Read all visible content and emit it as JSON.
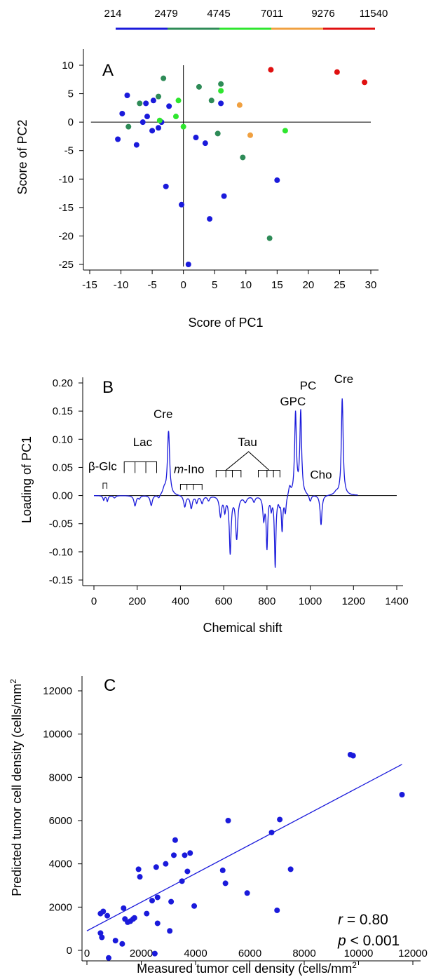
{
  "color_bar": {
    "labels": [
      "214",
      "2479",
      "4745",
      "7011",
      "9276",
      "11540"
    ],
    "colors": [
      "#1a1adb",
      "#2e8b57",
      "#2ee62e",
      "#f0a040",
      "#e01010"
    ]
  },
  "chart_data": [
    {
      "type": "scatter",
      "panel_label": "A",
      "xlabel": "Score of PC1",
      "ylabel": "Score of PC2",
      "xlim": [
        -15,
        30
      ],
      "ylim": [
        -25,
        10
      ],
      "xticks": [
        -15,
        -10,
        -5,
        0,
        5,
        10,
        15,
        20,
        25,
        30
      ],
      "yticks": [
        10,
        5,
        0,
        -5,
        -10,
        -15,
        -20,
        -25
      ],
      "reference_lines": [
        "x=0",
        "y=0"
      ],
      "color_scale": "cell density bins (see color_bar)",
      "series": [
        {
          "color": "#1a1adb",
          "points": [
            [
              -10.5,
              -3
            ],
            [
              -9.8,
              1.5
            ],
            [
              -9,
              4.7
            ],
            [
              -7.5,
              -4
            ],
            [
              -6.5,
              0
            ],
            [
              -6,
              3.3
            ],
            [
              -5.8,
              1
            ],
            [
              -5,
              -1.5
            ],
            [
              -4.8,
              3.8
            ],
            [
              -4,
              -1
            ],
            [
              -3.5,
              0
            ],
            [
              -2.8,
              -11.3
            ],
            [
              -2.3,
              2.8
            ],
            [
              -0.3,
              -14.5
            ],
            [
              0.8,
              -25
            ],
            [
              2,
              -2.7
            ],
            [
              3.5,
              -3.7
            ],
            [
              4.2,
              -17
            ],
            [
              6,
              3.3
            ],
            [
              6.5,
              -13
            ],
            [
              15,
              -10.2
            ]
          ]
        },
        {
          "color": "#2e8b57",
          "points": [
            [
              -8.8,
              -0.8
            ],
            [
              -7,
              3.3
            ],
            [
              -4,
              4.5
            ],
            [
              -3.2,
              7.7
            ],
            [
              2.5,
              6.2
            ],
            [
              4.5,
              3.8
            ],
            [
              5.5,
              -2
            ],
            [
              6,
              6.7
            ],
            [
              9.5,
              -6.2
            ],
            [
              13.8,
              -20.4
            ]
          ]
        },
        {
          "color": "#2ee62e",
          "points": [
            [
              -3.8,
              0.3
            ],
            [
              -0.8,
              3.8
            ],
            [
              -1.2,
              1
            ],
            [
              0,
              -0.8
            ],
            [
              6,
              5.5
            ],
            [
              16.3,
              -1.5
            ]
          ]
        },
        {
          "color": "#f0a040",
          "points": [
            [
              9,
              3
            ],
            [
              10.7,
              -2.3
            ]
          ]
        },
        {
          "color": "#e01010",
          "points": [
            [
              14,
              9.2
            ],
            [
              24.6,
              8.8
            ],
            [
              29,
              7
            ]
          ]
        }
      ]
    },
    {
      "type": "line",
      "panel_label": "B",
      "xlabel": "Chemical shift",
      "ylabel": "Loading of PC1",
      "xlim": [
        0,
        1400
      ],
      "ylim": [
        -0.15,
        0.2
      ],
      "xticks": [
        0,
        200,
        400,
        600,
        800,
        1000,
        1200,
        1400
      ],
      "yticks": [
        "0.20",
        "0.15",
        "0.10",
        "0.05",
        "0.00",
        "-0.05",
        "-0.10",
        "-0.15"
      ],
      "series": [
        {
          "color": "#1a1adb",
          "peaks": [
            {
              "x": 45,
              "y": -0.008,
              "w": 4
            },
            {
              "x": 62,
              "y": -0.01,
              "w": 4
            },
            {
              "x": 95,
              "y": -0.004,
              "w": 6
            },
            {
              "x": 190,
              "y": -0.018,
              "w": 6
            },
            {
              "x": 210,
              "y": -0.005,
              "w": 5
            },
            {
              "x": 265,
              "y": -0.018,
              "w": 6
            },
            {
              "x": 300,
              "y": -0.006,
              "w": 6
            },
            {
              "x": 345,
              "y": 0.114,
              "w": 6
            },
            {
              "x": 325,
              "y": 0.01,
              "w": 8
            },
            {
              "x": 420,
              "y": -0.02,
              "w": 6
            },
            {
              "x": 450,
              "y": -0.022,
              "w": 6
            },
            {
              "x": 475,
              "y": -0.012,
              "w": 5
            },
            {
              "x": 500,
              "y": -0.013,
              "w": 6
            },
            {
              "x": 530,
              "y": -0.008,
              "w": 6
            },
            {
              "x": 585,
              "y": -0.035,
              "w": 6
            },
            {
              "x": 605,
              "y": -0.025,
              "w": 5
            },
            {
              "x": 630,
              "y": -0.1,
              "w": 5
            },
            {
              "x": 660,
              "y": -0.075,
              "w": 6
            },
            {
              "x": 700,
              "y": -0.01,
              "w": 8
            },
            {
              "x": 740,
              "y": -0.01,
              "w": 6
            },
            {
              "x": 785,
              "y": -0.04,
              "w": 5
            },
            {
              "x": 800,
              "y": -0.09,
              "w": 4
            },
            {
              "x": 820,
              "y": -0.02,
              "w": 4
            },
            {
              "x": 838,
              "y": -0.125,
              "w": 4
            },
            {
              "x": 858,
              "y": -0.01,
              "w": 4
            },
            {
              "x": 870,
              "y": -0.06,
              "w": 4
            },
            {
              "x": 885,
              "y": -0.03,
              "w": 5
            },
            {
              "x": 905,
              "y": 0.015,
              "w": 6
            },
            {
              "x": 932,
              "y": 0.145,
              "w": 5
            },
            {
              "x": 956,
              "y": 0.148,
              "w": 5
            },
            {
              "x": 1000,
              "y": -0.012,
              "w": 6
            },
            {
              "x": 1050,
              "y": -0.053,
              "w": 5
            },
            {
              "x": 1120,
              "y": 0.005,
              "w": 10
            },
            {
              "x": 1148,
              "y": 0.172,
              "w": 5
            }
          ],
          "x_end": 1220
        }
      ],
      "annotations": [
        {
          "label": "β-Glc",
          "x": 40,
          "y": 0.045
        },
        {
          "label": "Lac",
          "x": 225,
          "y": 0.088
        },
        {
          "label": "Cre",
          "x": 320,
          "y": 0.138
        },
        {
          "label": "m",
          "label_rest": "-Ino",
          "x": 440,
          "y": 0.04
        },
        {
          "label": "Tau",
          "x": 710,
          "y": 0.088
        },
        {
          "label": "GPC",
          "x": 920,
          "y": 0.16
        },
        {
          "label": "PC",
          "x": 990,
          "y": 0.188
        },
        {
          "label": "Cho",
          "x": 1050,
          "y": 0.03
        },
        {
          "label": "Cre",
          "x": 1155,
          "y": 0.2
        }
      ]
    },
    {
      "type": "scatter",
      "panel_label": "C",
      "xlabel": "Measured  tumor cell density (cells/mm",
      "ylabel": "Predicted tumor cell density (cells/mm",
      "unit_superscript": "2",
      "xlim": [
        0,
        12000
      ],
      "ylim": [
        0,
        12000
      ],
      "xticks": [
        0,
        2000,
        4000,
        6000,
        8000,
        10000,
        12000
      ],
      "yticks": [
        12000,
        10000,
        8000,
        6000,
        4000,
        2000,
        0
      ],
      "fit_line": {
        "x": [
          0,
          11600
        ],
        "y": [
          900,
          8600
        ]
      },
      "stat_r_italic": "r",
      "stat_r": " = 0.80",
      "stat_p_italic": "p",
      "stat_p": " < 0.001",
      "series": [
        {
          "color": "#1a1adb",
          "points": [
            [
              500,
              800
            ],
            [
              550,
              600
            ],
            [
              500,
              1700
            ],
            [
              600,
              1800
            ],
            [
              750,
              1600
            ],
            [
              800,
              -350
            ],
            [
              1050,
              450
            ],
            [
              1300,
              300
            ],
            [
              1350,
              1950
            ],
            [
              1400,
              1450
            ],
            [
              1500,
              1300
            ],
            [
              1600,
              1350
            ],
            [
              1700,
              1450
            ],
            [
              1750,
              1500
            ],
            [
              1900,
              3750
            ],
            [
              1950,
              3400
            ],
            [
              2200,
              1700
            ],
            [
              2400,
              2300
            ],
            [
              2500,
              -150
            ],
            [
              2550,
              3850
            ],
            [
              2600,
              2450
            ],
            [
              2600,
              1250
            ],
            [
              2900,
              4000
            ],
            [
              3050,
              900
            ],
            [
              3100,
              2250
            ],
            [
              3200,
              4400
            ],
            [
              3250,
              5100
            ],
            [
              3500,
              3200
            ],
            [
              3600,
              4400
            ],
            [
              3700,
              3650
            ],
            [
              3800,
              4500
            ],
            [
              3950,
              2050
            ],
            [
              5000,
              3700
            ],
            [
              5100,
              3100
            ],
            [
              5200,
              6000
            ],
            [
              5900,
              2650
            ],
            [
              6800,
              5450
            ],
            [
              7000,
              1850
            ],
            [
              7100,
              6050
            ],
            [
              7500,
              3750
            ],
            [
              9700,
              9050
            ],
            [
              9800,
              9000
            ],
            [
              11600,
              7200
            ]
          ]
        }
      ]
    }
  ]
}
